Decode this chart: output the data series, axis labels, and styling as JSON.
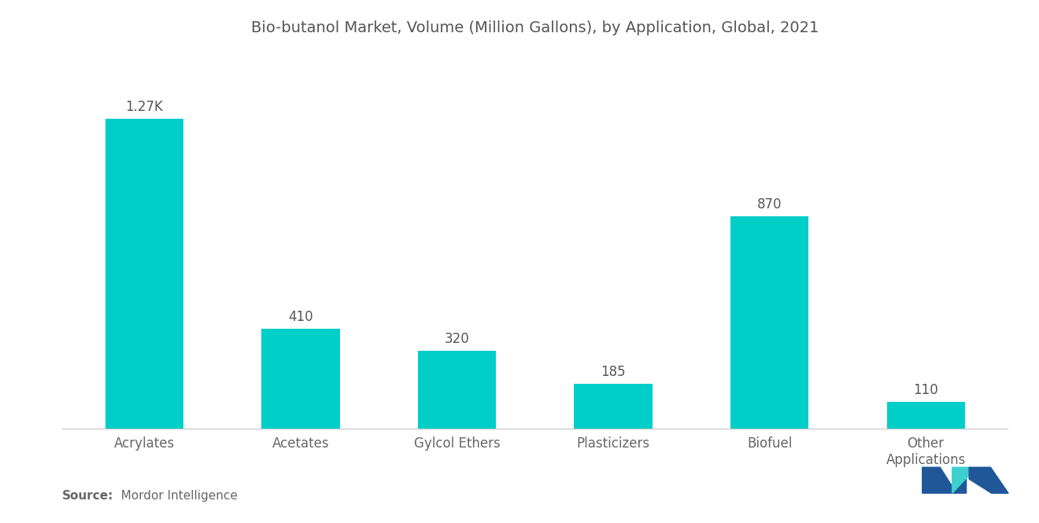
{
  "title": "Bio-butanol Market, Volume (Million Gallons), by Application, Global, 2021",
  "categories": [
    "Acrylates",
    "Acetates",
    "Gylcol Ethers",
    "Plasticizers",
    "Biofuel",
    "Other\nApplications"
  ],
  "values": [
    1270,
    410,
    320,
    185,
    870,
    110
  ],
  "labels": [
    "1.27K",
    "410",
    "320",
    "185",
    "870",
    "110"
  ],
  "bar_color": "#00CEC9",
  "background_color": "#FFFFFF",
  "title_fontsize": 14,
  "label_fontsize": 12,
  "tick_fontsize": 12,
  "source_text_bold": "Source:",
  "source_text_normal": "   Mordor Intelligence",
  "source_fontsize": 11,
  "ylim": [
    0,
    1500
  ],
  "title_color": "#555555",
  "tick_color": "#666666",
  "source_color": "#666666",
  "label_color": "#555555",
  "bar_width": 0.5,
  "logo_teal": "#3ECFCF",
  "logo_navy": "#1F5799"
}
